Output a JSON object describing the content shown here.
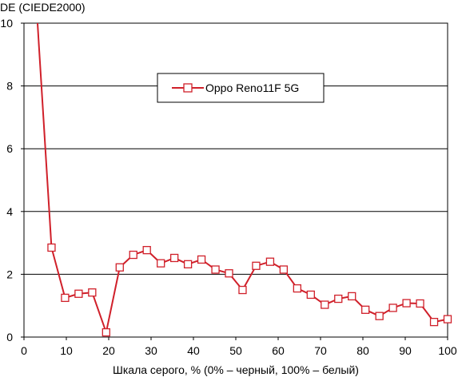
{
  "chart_data": {
    "type": "line",
    "title": "",
    "ylabel": "DE (CIEDE2000)",
    "xlabel": "Шкала серого, % (0% – черный, 100% – белый)",
    "xlim": [
      0,
      100
    ],
    "ylim": [
      0,
      10
    ],
    "xticks": [
      0,
      10,
      20,
      30,
      40,
      50,
      60,
      70,
      80,
      90,
      100
    ],
    "yticks": [
      0,
      2,
      4,
      6,
      8,
      10
    ],
    "grid": "horizontal",
    "legend_position": "top-center",
    "series": [
      {
        "name": "Oppo Reno11F 5G",
        "color": "#d0202a",
        "marker": "square",
        "x": [
          6.5,
          9.7,
          12.9,
          16.1,
          19.4,
          22.6,
          25.8,
          29.0,
          32.3,
          35.5,
          38.7,
          41.9,
          45.2,
          48.4,
          51.6,
          54.8,
          58.1,
          61.3,
          64.5,
          67.7,
          71.0,
          74.2,
          77.4,
          80.6,
          83.9,
          87.1,
          90.3,
          93.5,
          96.8,
          100
        ],
        "values": [
          2.85,
          1.25,
          1.38,
          1.42,
          0.15,
          2.22,
          2.62,
          2.77,
          2.35,
          2.52,
          2.32,
          2.47,
          2.15,
          2.03,
          1.5,
          2.27,
          2.4,
          2.15,
          1.55,
          1.35,
          1.03,
          1.22,
          1.3,
          0.87,
          0.67,
          0.93,
          1.08,
          1.07,
          0.48,
          0.57
        ]
      }
    ],
    "entry_line": {
      "x": [
        3.2,
        6.5
      ],
      "y": [
        10.0,
        2.85
      ]
    }
  }
}
